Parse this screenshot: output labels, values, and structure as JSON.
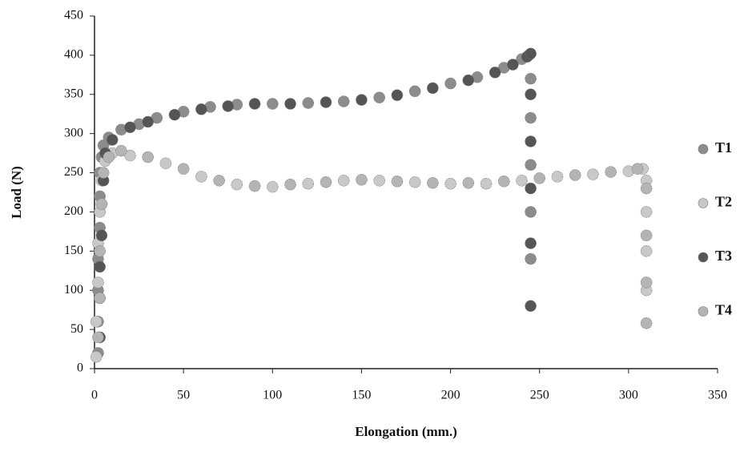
{
  "chart_data": {
    "type": "scatter",
    "x_label": "Elongation (mm.)",
    "y_label": "Load (N)",
    "xlim": [
      0,
      350
    ],
    "xticks": [
      0,
      50,
      100,
      150,
      200,
      250,
      300,
      350
    ],
    "ylim": [
      0,
      450
    ],
    "yticks": [
      0,
      50,
      100,
      150,
      200,
      250,
      300,
      350,
      400,
      450
    ],
    "legend": "right",
    "series": [
      {
        "name": "T1",
        "color": "#8c8c8c",
        "x": [
          2,
          2,
          2,
          2,
          3,
          3,
          3,
          4,
          5,
          8,
          15,
          25,
          35,
          50,
          65,
          80,
          100,
          120,
          140,
          160,
          180,
          200,
          215,
          230,
          240,
          244,
          245,
          245,
          245,
          245,
          245
        ],
        "values": [
          20,
          60,
          100,
          140,
          180,
          220,
          250,
          270,
          285,
          295,
          305,
          312,
          320,
          328,
          334,
          337,
          338,
          339,
          341,
          346,
          354,
          364,
          372,
          384,
          395,
          400,
          370,
          320,
          260,
          200,
          140
        ]
      },
      {
        "name": "T2",
        "color": "#c8c8c8",
        "x": [
          1,
          1,
          2,
          2,
          3,
          4,
          6,
          10,
          20,
          40,
          60,
          80,
          100,
          120,
          140,
          160,
          180,
          200,
          220,
          240,
          260,
          280,
          300,
          308,
          310,
          310,
          310,
          310
        ],
        "values": [
          15,
          60,
          110,
          160,
          200,
          240,
          265,
          275,
          272,
          262,
          245,
          235,
          232,
          236,
          240,
          240,
          238,
          236,
          236,
          240,
          245,
          248,
          252,
          255,
          240,
          200,
          150,
          100
        ]
      },
      {
        "name": "T3",
        "color": "#555555",
        "x": [
          3,
          3,
          3,
          4,
          4,
          5,
          6,
          10,
          20,
          30,
          45,
          60,
          75,
          90,
          110,
          130,
          150,
          170,
          190,
          210,
          225,
          235,
          243,
          245,
          245,
          245,
          245,
          245,
          245
        ],
        "values": [
          40,
          90,
          130,
          170,
          210,
          240,
          275,
          292,
          308,
          315,
          324,
          331,
          335,
          338,
          338,
          340,
          343,
          349,
          358,
          368,
          378,
          388,
          398,
          402,
          350,
          290,
          230,
          160,
          80
        ]
      },
      {
        "name": "T4",
        "color": "#b4b4b4",
        "x": [
          2,
          3,
          3,
          4,
          5,
          8,
          15,
          30,
          50,
          70,
          90,
          110,
          130,
          150,
          170,
          190,
          210,
          230,
          250,
          270,
          290,
          305,
          310,
          310,
          310,
          310
        ],
        "values": [
          40,
          90,
          150,
          210,
          250,
          270,
          278,
          270,
          255,
          240,
          233,
          235,
          238,
          241,
          239,
          237,
          237,
          239,
          243,
          247,
          251,
          255,
          230,
          170,
          110,
          58
        ]
      }
    ]
  }
}
